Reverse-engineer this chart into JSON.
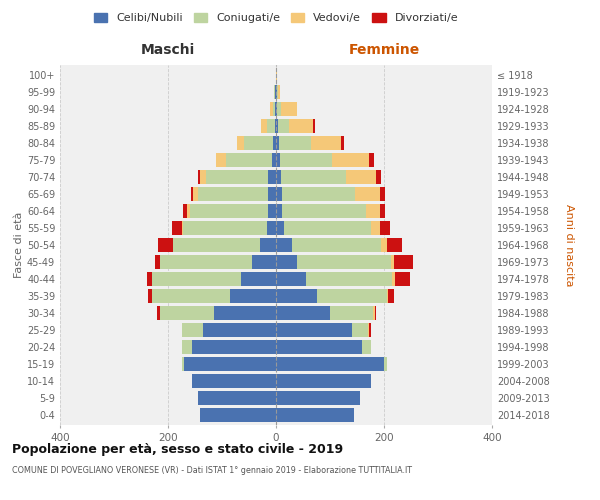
{
  "age_groups": [
    "0-4",
    "5-9",
    "10-14",
    "15-19",
    "20-24",
    "25-29",
    "30-34",
    "35-39",
    "40-44",
    "45-49",
    "50-54",
    "55-59",
    "60-64",
    "65-69",
    "70-74",
    "75-79",
    "80-84",
    "85-89",
    "90-94",
    "95-99",
    "100+"
  ],
  "birth_years": [
    "2014-2018",
    "2009-2013",
    "2004-2008",
    "1999-2003",
    "1994-1998",
    "1989-1993",
    "1984-1988",
    "1979-1983",
    "1974-1978",
    "1969-1973",
    "1964-1968",
    "1959-1963",
    "1954-1958",
    "1949-1953",
    "1944-1948",
    "1939-1943",
    "1934-1938",
    "1929-1933",
    "1924-1928",
    "1919-1923",
    "≤ 1918"
  ],
  "colors": {
    "celibi": "#4a72b0",
    "coniugati": "#bed4a0",
    "vedovi": "#f5c878",
    "divorziati": "#cc1111"
  },
  "male": {
    "celibi": [
      140,
      145,
      155,
      170,
      155,
      135,
      115,
      85,
      65,
      45,
      30,
      17,
      15,
      15,
      15,
      8,
      5,
      2,
      1,
      1,
      0
    ],
    "coniugati": [
      0,
      0,
      0,
      5,
      20,
      40,
      100,
      145,
      165,
      170,
      160,
      155,
      145,
      130,
      115,
      85,
      55,
      15,
      5,
      2,
      0
    ],
    "vedovi": [
      0,
      0,
      0,
      0,
      0,
      0,
      0,
      0,
      0,
      0,
      0,
      3,
      5,
      8,
      10,
      18,
      12,
      10,
      5,
      1,
      0
    ],
    "divorziati": [
      0,
      0,
      0,
      0,
      0,
      0,
      5,
      7,
      8,
      10,
      28,
      17,
      8,
      5,
      5,
      0,
      0,
      0,
      0,
      0,
      0
    ]
  },
  "female": {
    "nubili": [
      145,
      155,
      175,
      200,
      160,
      140,
      100,
      75,
      55,
      38,
      30,
      15,
      12,
      12,
      10,
      8,
      5,
      4,
      2,
      1,
      0
    ],
    "coniugati": [
      0,
      0,
      0,
      5,
      15,
      30,
      80,
      130,
      160,
      175,
      165,
      160,
      155,
      135,
      120,
      95,
      60,
      20,
      8,
      2,
      0
    ],
    "vedovi": [
      0,
      0,
      0,
      0,
      0,
      3,
      3,
      3,
      5,
      5,
      10,
      18,
      25,
      45,
      55,
      70,
      55,
      45,
      28,
      5,
      2
    ],
    "divorziati": [
      0,
      0,
      0,
      0,
      0,
      3,
      3,
      10,
      28,
      35,
      28,
      18,
      10,
      10,
      10,
      8,
      5,
      3,
      0,
      0,
      0
    ]
  },
  "title": "Popolazione per età, sesso e stato civile - 2019",
  "subtitle": "COMUNE DI POVEGLIANO VERONESE (VR) - Dati ISTAT 1° gennaio 2019 - Elaborazione TUTTITALIA.IT",
  "ylabel_left": "Fasce di età",
  "ylabel_right": "Anni di nascita",
  "xlabel_left": "Maschi",
  "xlabel_right": "Femmine",
  "xlim": 400,
  "legend_labels": [
    "Celibi/Nubili",
    "Coniugati/e",
    "Vedovi/e",
    "Divorziati/e"
  ],
  "bg_color": "#ffffff",
  "plot_bg": "#f0f0f0",
  "grid_color": "#cccccc"
}
